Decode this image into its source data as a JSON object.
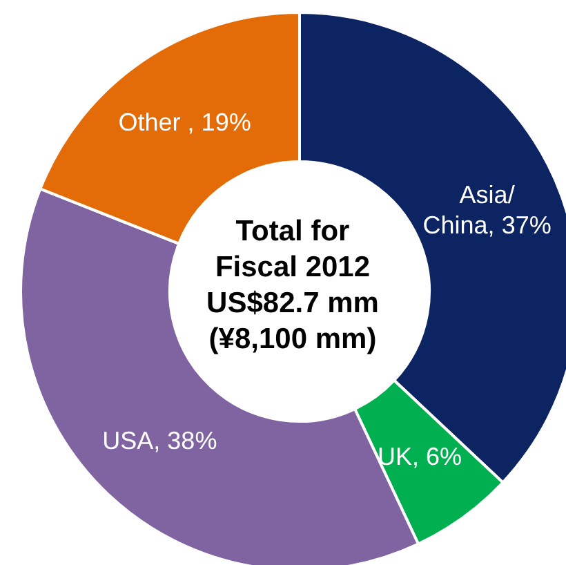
{
  "chart_data": {
    "type": "donut",
    "title": "Total for\nFiscal 2012\nUS$82.7 mm\n(¥8,100 mm)",
    "categories": [
      "Asia/\nChina",
      "UK",
      "USA",
      "Other "
    ],
    "values": [
      37,
      6,
      38,
      19
    ],
    "colors": [
      "#0c2461",
      "#00b050",
      "#8064a2",
      "#e36c09"
    ],
    "value_labels": [
      "37%",
      "6%",
      "38%",
      "19%"
    ],
    "legend": false
  }
}
